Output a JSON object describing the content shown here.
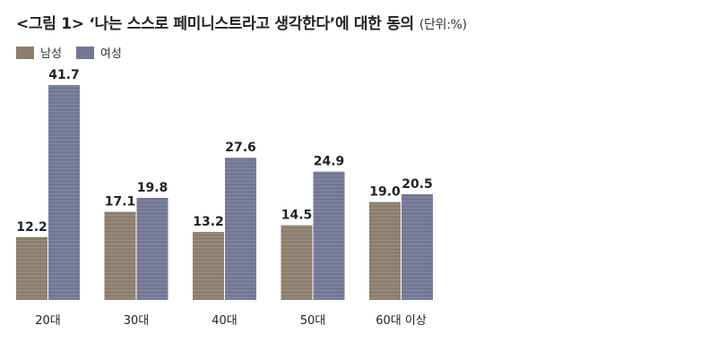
{
  "title": "<그림 1> ‘나는 스스로 페미니스트라고 생각한다’에 대한 동의",
  "unit": "(단위:%)",
  "legend": [
    {
      "label": "남성",
      "color": "#8c7e6c"
    },
    {
      "label": "여성",
      "color": "#737793"
    }
  ],
  "chart_data": {
    "type": "bar",
    "title": "<그림 1> ‘나는 스스로 페미니스트라고 생각한다’에 대한 동의",
    "categories": [
      "20대",
      "30대",
      "40대",
      "50대",
      "60대 이상"
    ],
    "series": [
      {
        "name": "남성",
        "values": [
          12.2,
          17.1,
          13.2,
          14.5,
          19.0
        ]
      },
      {
        "name": "여성",
        "values": [
          41.7,
          19.8,
          27.6,
          24.9,
          20.5
        ]
      }
    ],
    "value_labels": [
      [
        "12.2",
        "17.1",
        "13.2",
        "14.5",
        "19.0"
      ],
      [
        "41.7",
        "19.8",
        "27.6",
        "24.9",
        "20.5"
      ]
    ],
    "colors": [
      "#8c7e6c",
      "#737793"
    ],
    "ylim": [
      0,
      45
    ],
    "grid": false,
    "legend_position": "top-left"
  }
}
